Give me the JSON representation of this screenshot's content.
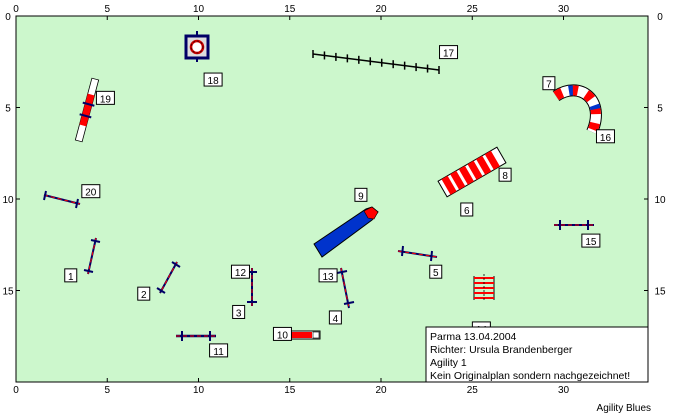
{
  "axis": {
    "x_ticks": [
      0,
      5,
      10,
      15,
      20,
      25,
      30
    ],
    "y_ticks": [
      0,
      5,
      10,
      15
    ]
  },
  "colors": {
    "field": "#ccf7cc",
    "red": "#ff0000",
    "blue": "#0033cc",
    "navy": "#000066",
    "white": "#ffffff"
  },
  "obstacles": [
    {
      "n": "1",
      "type": "jump",
      "label_x": 3.0,
      "label_y": 14.2
    },
    {
      "n": "2",
      "type": "jump",
      "label_x": 7.0,
      "label_y": 15.2
    },
    {
      "n": "3",
      "type": "jump",
      "label_x": 12.2,
      "label_y": 16.2
    },
    {
      "n": "4",
      "type": "jump",
      "label_x": 17.5,
      "label_y": 16.5
    },
    {
      "n": "5",
      "type": "jump",
      "label_x": 23.0,
      "label_y": 14.0
    },
    {
      "n": "6",
      "type": "tunnel-end",
      "label_x": 24.7,
      "label_y": 10.6
    },
    {
      "n": "7",
      "type": "tunnel-end",
      "label_x": 29.2,
      "label_y": 3.7
    },
    {
      "n": "8",
      "type": "tunnel",
      "label_x": 26.8,
      "label_y": 8.7
    },
    {
      "n": "9",
      "type": "chute",
      "label_x": 18.9,
      "label_y": 9.8
    },
    {
      "n": "10",
      "type": "table",
      "label_x": 14.6,
      "label_y": 17.4
    },
    {
      "n": "11",
      "type": "jump",
      "label_x": 11.1,
      "label_y": 18.3
    },
    {
      "n": "12",
      "type": "jump",
      "label_x": 12.3,
      "label_y": 14.0
    },
    {
      "n": "13",
      "type": "jump",
      "label_x": 17.1,
      "label_y": 14.2
    },
    {
      "n": "14",
      "type": "weave",
      "label_x": 25.5,
      "label_y": 17.1
    },
    {
      "n": "15",
      "type": "jump",
      "label_x": 31.5,
      "label_y": 12.3
    },
    {
      "n": "16",
      "type": "tunnel-curve",
      "label_x": 32.3,
      "label_y": 6.6
    },
    {
      "n": "17",
      "type": "weave-poles",
      "label_x": 23.7,
      "label_y": 2.0
    },
    {
      "n": "18",
      "type": "tire",
      "label_x": 10.8,
      "label_y": 3.5
    },
    {
      "n": "19",
      "type": "wall",
      "label_x": 4.9,
      "label_y": 4.5
    },
    {
      "n": "20",
      "type": "jump",
      "label_x": 4.1,
      "label_y": 9.6
    }
  ],
  "info": {
    "line1": "Parma 13.04.2004",
    "line2": "Richter: Ursula Brandenberger",
    "line3": "Agility 1",
    "line4": "Kein Originalplan sondern nachgezeichnet!"
  },
  "brand": "Agility Blues"
}
